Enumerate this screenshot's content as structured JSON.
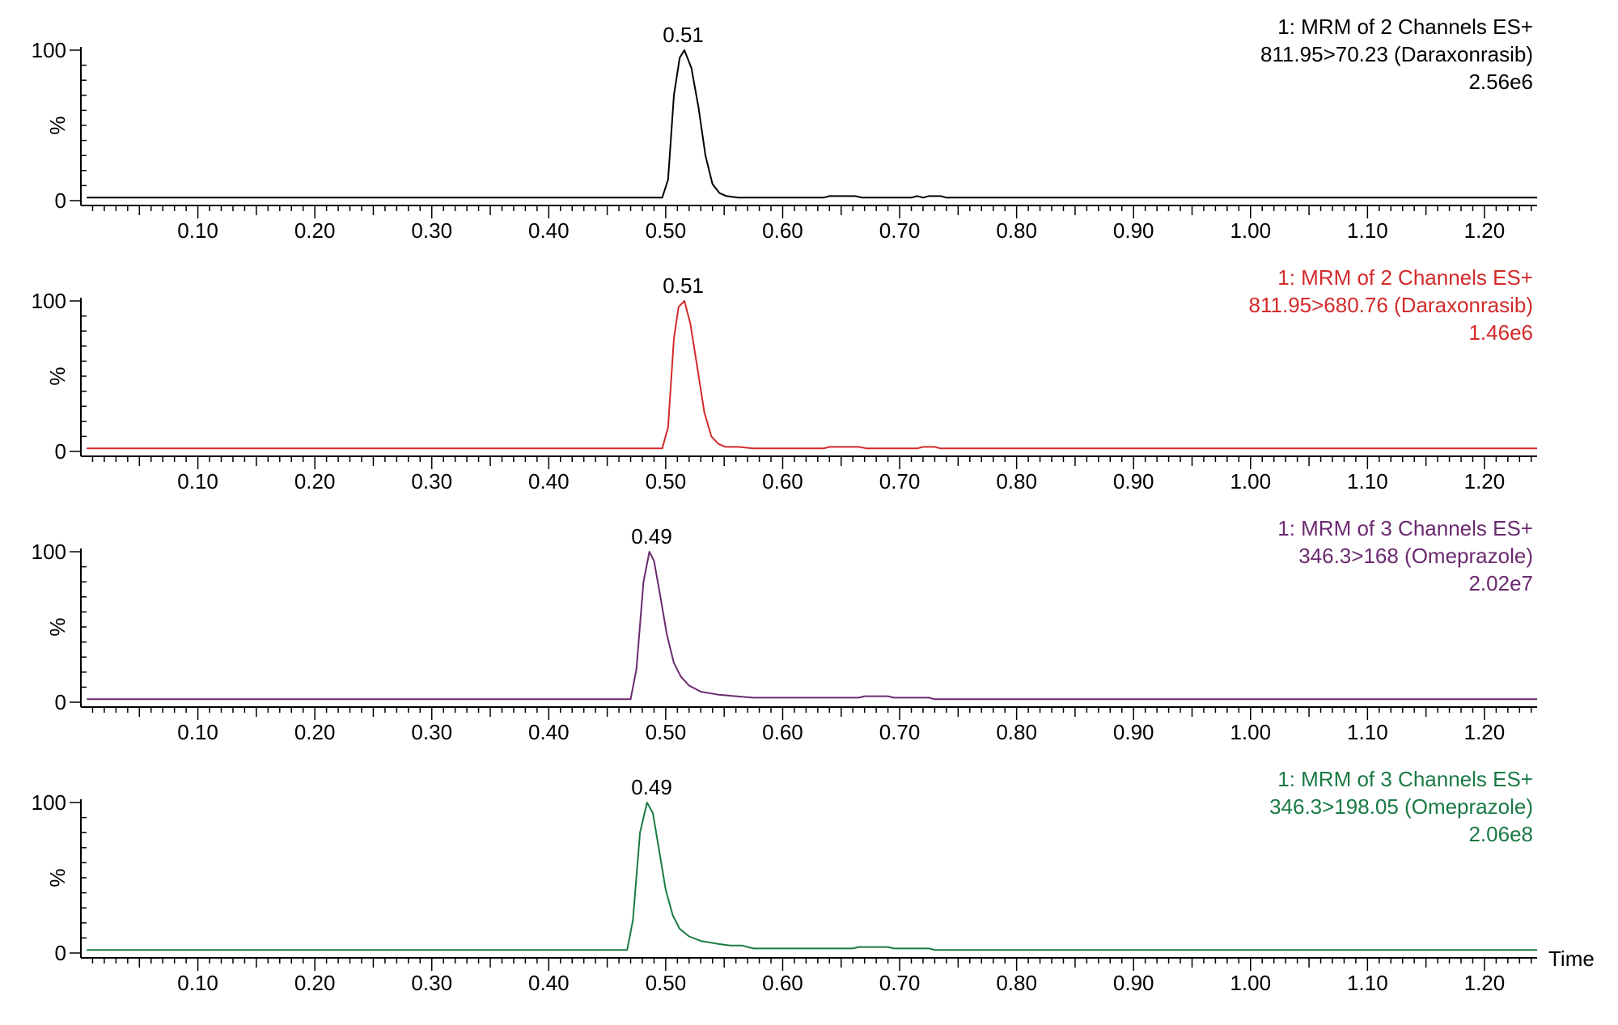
{
  "chart_data": [
    {
      "type": "line",
      "header": [
        "1: MRM of 2 Channels ES+",
        "811.95>70.23 (Daraxonrasib)",
        "2.56e6"
      ],
      "color": "#000000",
      "peak_label": "0.51",
      "peak_x": 0.515,
      "ylabel": "%",
      "xlabel": "",
      "xlim": [
        0.0,
        1.245
      ],
      "ylim": [
        0,
        100
      ],
      "x_ticks": [
        "0.10",
        "0.20",
        "0.30",
        "0.40",
        "0.50",
        "0.60",
        "0.70",
        "0.80",
        "0.90",
        "1.00",
        "1.10",
        "1.20"
      ],
      "y_ticks": [
        "0",
        "%",
        "100"
      ],
      "series": [
        {
          "x": [
            0.005,
            0.497,
            0.502,
            0.507,
            0.512,
            0.516,
            0.522,
            0.528,
            0.534,
            0.54,
            0.546,
            0.552,
            0.562,
            0.575,
            0.635,
            0.64,
            0.662,
            0.668,
            0.71,
            0.715,
            0.72,
            0.725,
            0.735,
            0.74,
            1.245
          ],
          "y": [
            2,
            2,
            14,
            70,
            95,
            100,
            88,
            62,
            30,
            11,
            5,
            3,
            2,
            2,
            2,
            3,
            3,
            2,
            2,
            3,
            2,
            3,
            3,
            2,
            2
          ]
        }
      ]
    },
    {
      "type": "line",
      "header": [
        "1: MRM of 2 Channels ES+",
        "811.95>680.76 (Daraxonrasib)",
        "1.46e6"
      ],
      "color": "#d32a2a",
      "peak_label": "0.51",
      "peak_x": 0.515,
      "ylabel": "%",
      "xlabel": "",
      "xlim": [
        0.0,
        1.245
      ],
      "ylim": [
        0,
        100
      ],
      "x_ticks": [
        "0.10",
        "0.20",
        "0.30",
        "0.40",
        "0.50",
        "0.60",
        "0.70",
        "0.80",
        "0.90",
        "1.00",
        "1.10",
        "1.20"
      ],
      "y_ticks": [
        "0",
        "%",
        "100"
      ],
      "series": [
        {
          "x": [
            0.005,
            0.497,
            0.502,
            0.507,
            0.511,
            0.516,
            0.521,
            0.527,
            0.533,
            0.539,
            0.545,
            0.551,
            0.562,
            0.575,
            0.635,
            0.64,
            0.665,
            0.672,
            0.715,
            0.72,
            0.73,
            0.735,
            1.245
          ],
          "y": [
            2,
            2,
            16,
            75,
            96,
            100,
            85,
            56,
            26,
            10,
            5,
            3,
            3,
            2,
            2,
            3,
            3,
            2,
            2,
            3,
            3,
            2,
            2
          ]
        }
      ]
    },
    {
      "type": "line",
      "header": [
        "1: MRM of 3 Channels ES+",
        "346.3>168 (Omeprazole)",
        "2.02e7"
      ],
      "color": "#6b2a6f",
      "peak_label": "0.49",
      "peak_x": 0.488,
      "ylabel": "%",
      "xlabel": "",
      "xlim": [
        0.0,
        1.245
      ],
      "ylim": [
        0,
        100
      ],
      "x_ticks": [
        "0.10",
        "0.20",
        "0.30",
        "0.40",
        "0.50",
        "0.60",
        "0.70",
        "0.80",
        "0.90",
        "1.00",
        "1.10",
        "1.20"
      ],
      "y_ticks": [
        "0",
        "%",
        "100"
      ],
      "series": [
        {
          "x": [
            0.005,
            0.47,
            0.475,
            0.481,
            0.486,
            0.49,
            0.495,
            0.501,
            0.507,
            0.513,
            0.52,
            0.53,
            0.545,
            0.56,
            0.575,
            0.665,
            0.67,
            0.69,
            0.695,
            0.725,
            0.73,
            1.245
          ],
          "y": [
            2,
            2,
            22,
            80,
            100,
            94,
            72,
            45,
            26,
            17,
            11,
            7,
            5,
            4,
            3,
            3,
            4,
            4,
            3,
            3,
            2,
            2
          ]
        }
      ]
    },
    {
      "type": "line",
      "header": [
        "1: MRM of 3 Channels ES+",
        "346.3>198.05 (Omeprazole)",
        "2.06e8"
      ],
      "color": "#1a7a44",
      "peak_label": "0.49",
      "peak_x": 0.488,
      "ylabel": "%",
      "xlabel": "Time",
      "xlim": [
        0.0,
        1.245
      ],
      "ylim": [
        0,
        100
      ],
      "x_ticks": [
        "0.10",
        "0.20",
        "0.30",
        "0.40",
        "0.50",
        "0.60",
        "0.70",
        "0.80",
        "0.90",
        "1.00",
        "1.10",
        "1.20"
      ],
      "y_ticks": [
        "0",
        "%",
        "100"
      ],
      "series": [
        {
          "x": [
            0.005,
            0.467,
            0.472,
            0.478,
            0.484,
            0.489,
            0.494,
            0.5,
            0.506,
            0.512,
            0.52,
            0.53,
            0.545,
            0.555,
            0.565,
            0.575,
            0.66,
            0.665,
            0.69,
            0.695,
            0.725,
            0.73,
            1.245
          ],
          "y": [
            2,
            2,
            22,
            80,
            100,
            93,
            70,
            42,
            25,
            16,
            11,
            8,
            6,
            5,
            5,
            3,
            3,
            4,
            4,
            3,
            3,
            2,
            2
          ]
        }
      ]
    }
  ]
}
